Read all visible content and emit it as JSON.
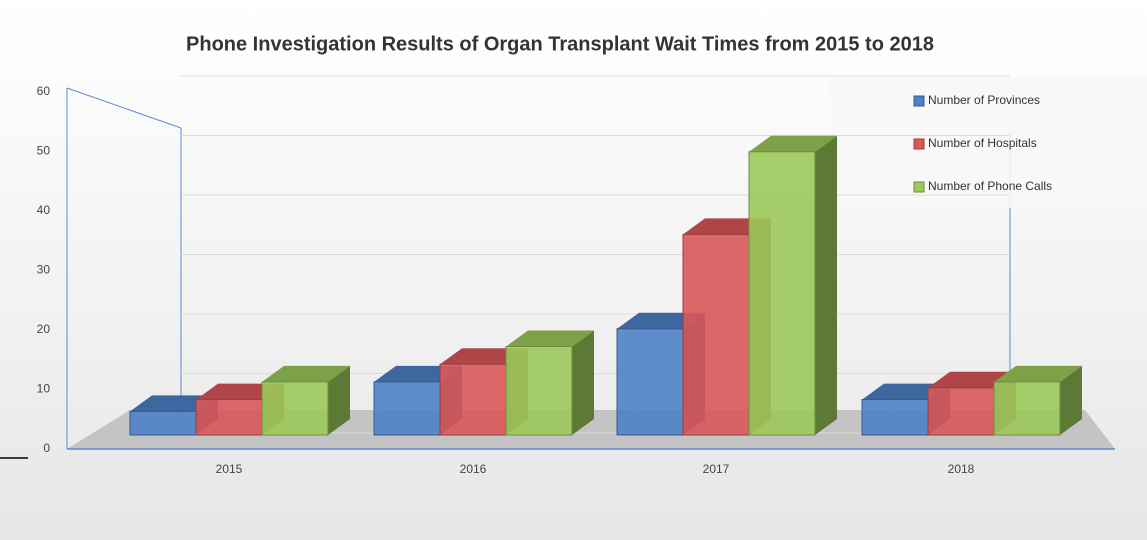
{
  "chart_data": {
    "type": "bar3d",
    "title": "Phone Investigation Results of Organ Transplant Wait Times from 2015 to 2018",
    "categories": [
      "2015",
      "2016",
      "2017",
      "2018"
    ],
    "series": [
      {
        "name": "Number of Provinces",
        "color": "#4f81c7",
        "values": [
          4,
          9,
          18,
          6
        ]
      },
      {
        "name": "Number of Hospitals",
        "color": "#d9585a",
        "values": [
          6,
          12,
          34,
          8
        ]
      },
      {
        "name": "Number of Phone Calls",
        "color": "#9bc95a",
        "values": [
          9,
          15,
          48,
          9
        ]
      }
    ],
    "ylim": [
      0,
      60
    ],
    "yticks": [
      0,
      10,
      20,
      30,
      40,
      50,
      60
    ],
    "grid": true,
    "legend": "top-right"
  }
}
